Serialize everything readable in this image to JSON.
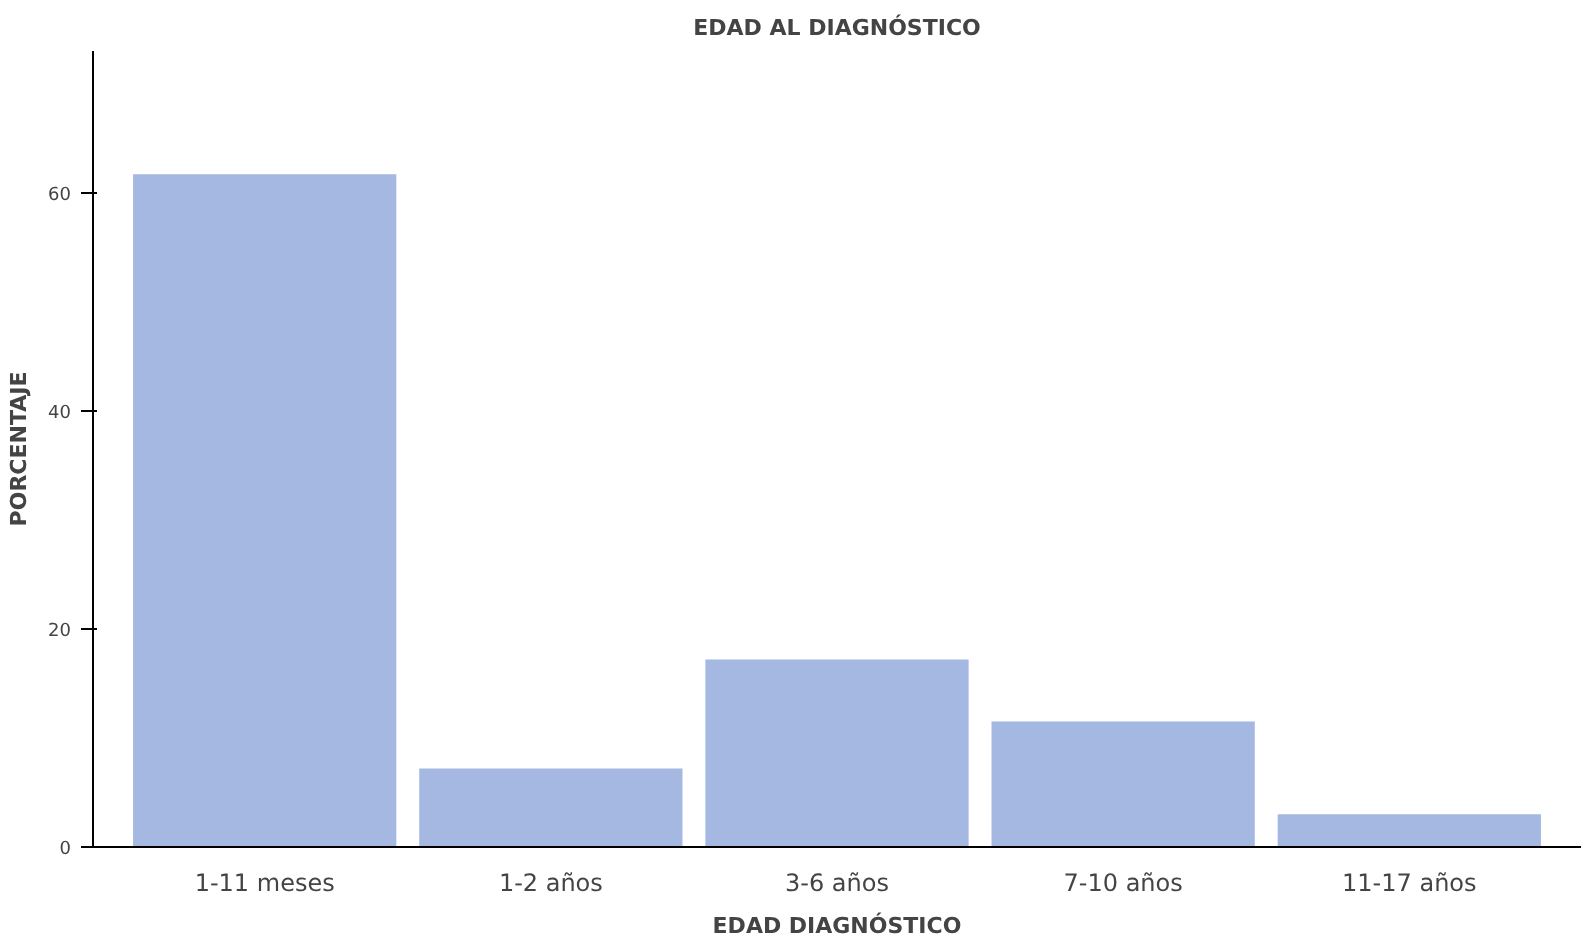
{
  "chart_data": {
    "type": "bar",
    "title": "EDAD AL DIAGNÓSTICO",
    "xlabel": "EDAD DIAGNÓSTICO",
    "ylabel": "PORCENTAJE",
    "categories": [
      "1-11 meses",
      "1-2 años",
      "3-6 años",
      "7-10 años",
      "11-17 años"
    ],
    "values": [
      61.7,
      7.2,
      17.2,
      11.5,
      3.0
    ],
    "color": "#a4b8e2",
    "ylim": [
      0,
      73
    ],
    "yticks": [
      0,
      20,
      40,
      60
    ],
    "grid": false
  }
}
